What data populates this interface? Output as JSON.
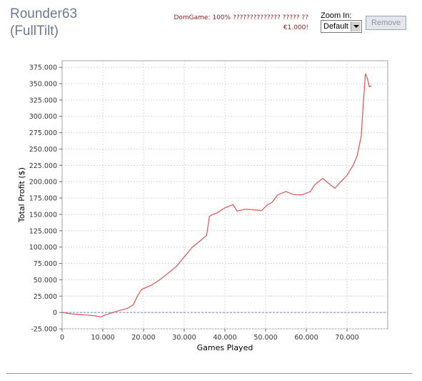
{
  "player": {
    "name_line1": "Rounder63",
    "name_line2": "(FullTilt)"
  },
  "promo": {
    "line1": "DomGame: 100% ?????????????? ????? ??",
    "line2": "€1.000!"
  },
  "zoom": {
    "label": "Zoom In:",
    "selected": "Default"
  },
  "remove_button": {
    "label": "Remove"
  },
  "colors": {
    "series_line": "#e05050",
    "zero_line": "#8080d0",
    "grid": "#d8d8d8"
  },
  "chart_data": {
    "type": "line",
    "xlabel": "Games Played",
    "ylabel": "Total Profit ($)",
    "xlim": [
      0,
      80000
    ],
    "ylim": [
      -25000,
      385000
    ],
    "x_ticks": [
      0,
      10000,
      20000,
      30000,
      40000,
      50000,
      60000,
      70000
    ],
    "x_tick_labels": [
      "0",
      "10.000",
      "20.000",
      "30.000",
      "40.000",
      "50.000",
      "60.000",
      "70.000"
    ],
    "y_ticks": [
      -25000,
      0,
      25000,
      50000,
      75000,
      100000,
      125000,
      150000,
      175000,
      200000,
      225000,
      250000,
      275000,
      300000,
      325000,
      350000,
      375000
    ],
    "y_tick_labels": [
      "-25.000",
      "0",
      "25.000",
      "50.000",
      "75.000",
      "100.000",
      "125.000",
      "150.000",
      "175.000",
      "200.000",
      "225.000",
      "250.000",
      "275.000",
      "300.000",
      "325.000",
      "350.000",
      "375.000"
    ],
    "grid": true,
    "reference_line_y": 0,
    "series": [
      {
        "x": [
          0,
          2000,
          4000,
          6000,
          8000,
          9500,
          10500,
          12000,
          14000,
          16000,
          17500,
          18500,
          19500,
          20500,
          22000,
          24000,
          26000,
          28000,
          30000,
          32000,
          34000,
          35500,
          36200,
          37000,
          38000,
          40000,
          42000,
          43000,
          45000,
          47000,
          49000,
          50500,
          51500,
          53000,
          55000,
          57000,
          59000,
          61000,
          62000,
          64000,
          66000,
          67000,
          68500,
          70000,
          71500,
          72500,
          73500,
          74000,
          74500,
          75000,
          75500,
          76000
        ],
        "y": [
          0,
          -2000,
          -3000,
          -4000,
          -5000,
          -7000,
          -4000,
          -1000,
          3000,
          6000,
          12000,
          25000,
          35000,
          38000,
          42000,
          50000,
          60000,
          70000,
          85000,
          100000,
          110000,
          118000,
          147000,
          150000,
          152000,
          160000,
          165000,
          155000,
          158000,
          157000,
          156000,
          165000,
          168000,
          180000,
          185000,
          180000,
          180000,
          185000,
          195000,
          205000,
          195000,
          190000,
          200000,
          210000,
          225000,
          240000,
          270000,
          320000,
          365000,
          358000,
          345000,
          347000
        ]
      }
    ]
  }
}
